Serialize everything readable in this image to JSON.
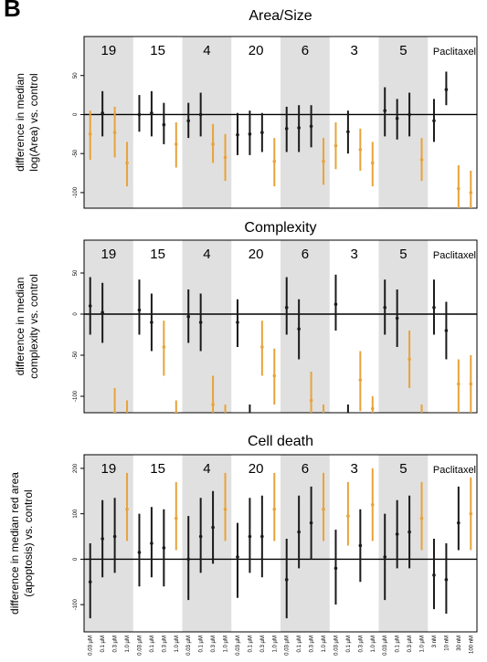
{
  "panel_label": "B",
  "colors": {
    "shade": "#e0e0e0",
    "control_group": "#1a1a1a",
    "highlight": "#e8a33a"
  },
  "x_labels": [
    "0.03 µM",
    "0.1 µM",
    "0.3 µM",
    "1.0 µM",
    "0.03 µM",
    "0.1 µM",
    "0.3 µM",
    "1.0 µM",
    "0.03 µM",
    "0.1 µM",
    "0.3 µM",
    "1.0 µM",
    "0.03 µM",
    "0.1 µM",
    "0.3 µM",
    "1.0 µM",
    "0.03 µM",
    "0.1 µM",
    "0.3 µM",
    "1.0 µM",
    "0.03 µM",
    "0.1 µM",
    "0.3 µM",
    "1.0 µM",
    "0.03 µM",
    "0.1 µM",
    "0.3 µM",
    "1.0 µM",
    "3 nM",
    "10 nM",
    "30 nM",
    "100 nM"
  ],
  "chart_data": [
    {
      "type": "scatter",
      "title": "Area/Size",
      "ylabel_lines": [
        "difference in median",
        "log(Area) vs. control"
      ],
      "ylim": [
        -120,
        100
      ],
      "yticks": [
        -100,
        -50,
        0,
        50
      ],
      "groups": [
        "19",
        "15",
        "4",
        "20",
        "6",
        "3",
        "5",
        "Paclitaxel"
      ],
      "series": [
        {
          "point": [
            -25,
            2,
            -23,
            -62,
            0,
            2,
            -13,
            -38,
            -8,
            0,
            -38,
            -55,
            -26,
            -25,
            -23,
            -60,
            -18,
            -17,
            -15,
            -60,
            -40,
            -22,
            -45,
            -62,
            5,
            -5,
            0,
            -58,
            -8,
            32,
            -95,
            -100
          ],
          "low": [
            -58,
            -28,
            -55,
            -92,
            -22,
            -28,
            -38,
            -68,
            -30,
            -28,
            -62,
            -85,
            -52,
            -52,
            -48,
            -92,
            -48,
            -48,
            -42,
            -90,
            -70,
            -50,
            -72,
            -92,
            -28,
            -32,
            -28,
            -85,
            -35,
            12,
            -120,
            -120
          ],
          "high": [
            5,
            30,
            10,
            -35,
            25,
            30,
            15,
            -10,
            15,
            28,
            -12,
            -25,
            2,
            5,
            2,
            -30,
            10,
            12,
            12,
            -30,
            -10,
            5,
            -18,
            -35,
            35,
            20,
            28,
            -30,
            20,
            55,
            -65,
            -72
          ],
          "color": [
            "o",
            "k",
            "o",
            "o",
            "k",
            "k",
            "k",
            "o",
            "k",
            "k",
            "o",
            "o",
            "k",
            "k",
            "k",
            "o",
            "k",
            "k",
            "k",
            "o",
            "o",
            "k",
            "o",
            "o",
            "k",
            "k",
            "k",
            "o",
            "k",
            "k",
            "o",
            "o"
          ]
        }
      ]
    },
    {
      "type": "scatter",
      "title": "Complexity",
      "ylabel_lines": [
        "difference in median",
        "complexity vs. control"
      ],
      "ylim": [
        -120,
        90
      ],
      "yticks": [
        -100,
        -50,
        0,
        50
      ],
      "groups": [
        "19",
        "15",
        "4",
        "20",
        "6",
        "3",
        "5",
        "Paclitaxel"
      ],
      "series": [
        {
          "point": [
            10,
            2,
            -120,
            -130,
            5,
            -10,
            -40,
            -120,
            -3,
            -10,
            -110,
            -130,
            -10,
            -130,
            -40,
            -75,
            8,
            -18,
            -105,
            -130,
            12,
            -130,
            -80,
            -115,
            8,
            -5,
            -55,
            -130,
            8,
            -20,
            -85,
            -85
          ],
          "low": [
            -25,
            -35,
            -140,
            -140,
            -25,
            -45,
            -75,
            -140,
            -35,
            -45,
            -140,
            -140,
            -40,
            -140,
            -75,
            -110,
            -25,
            -55,
            -140,
            -140,
            -20,
            -140,
            -118,
            -140,
            -25,
            -40,
            -90,
            -140,
            -25,
            -55,
            -120,
            -120
          ],
          "high": [
            45,
            38,
            -90,
            -105,
            42,
            25,
            -8,
            -105,
            30,
            25,
            -75,
            -110,
            18,
            -110,
            -8,
            -42,
            45,
            18,
            -70,
            -110,
            48,
            -110,
            -45,
            -100,
            42,
            30,
            -20,
            -110,
            42,
            15,
            -55,
            -50
          ],
          "color": [
            "k",
            "k",
            "o",
            "o",
            "k",
            "k",
            "o",
            "o",
            "k",
            "k",
            "o",
            "o",
            "k",
            "k",
            "o",
            "o",
            "k",
            "k",
            "o",
            "o",
            "k",
            "k",
            "o",
            "o",
            "k",
            "k",
            "o",
            "o",
            "k",
            "k",
            "o",
            "o"
          ]
        }
      ]
    },
    {
      "type": "scatter",
      "title": "Cell death",
      "ylabel_lines": [
        "difference in median red area",
        "(apoptosis) vs. control"
      ],
      "ylim": [
        -160,
        230
      ],
      "yticks": [
        -100,
        0,
        100,
        200
      ],
      "groups": [
        "19",
        "15",
        "4",
        "20",
        "6",
        "3",
        "5",
        "Paclitaxel"
      ],
      "series": [
        {
          "point": [
            -50,
            45,
            50,
            110,
            15,
            35,
            25,
            90,
            0,
            50,
            70,
            110,
            5,
            50,
            50,
            110,
            -45,
            60,
            80,
            110,
            -20,
            95,
            30,
            120,
            5,
            55,
            60,
            90,
            -35,
            -45,
            80,
            100
          ],
          "low": [
            -130,
            -40,
            -30,
            40,
            -60,
            -40,
            -60,
            20,
            -90,
            -30,
            -10,
            40,
            -85,
            -30,
            -40,
            40,
            -130,
            -20,
            0,
            40,
            -100,
            30,
            -50,
            40,
            -90,
            -20,
            -20,
            20,
            -110,
            -120,
            20,
            20
          ],
          "high": [
            35,
            130,
            135,
            190,
            100,
            115,
            110,
            170,
            95,
            135,
            150,
            190,
            80,
            135,
            140,
            190,
            45,
            140,
            160,
            190,
            65,
            170,
            110,
            200,
            100,
            130,
            140,
            170,
            45,
            35,
            160,
            180
          ],
          "color": [
            "k",
            "k",
            "k",
            "o",
            "k",
            "k",
            "k",
            "o",
            "k",
            "k",
            "k",
            "o",
            "k",
            "k",
            "k",
            "o",
            "k",
            "k",
            "k",
            "o",
            "k",
            "o",
            "k",
            "o",
            "k",
            "k",
            "k",
            "o",
            "k",
            "k",
            "k",
            "o"
          ]
        }
      ]
    }
  ]
}
